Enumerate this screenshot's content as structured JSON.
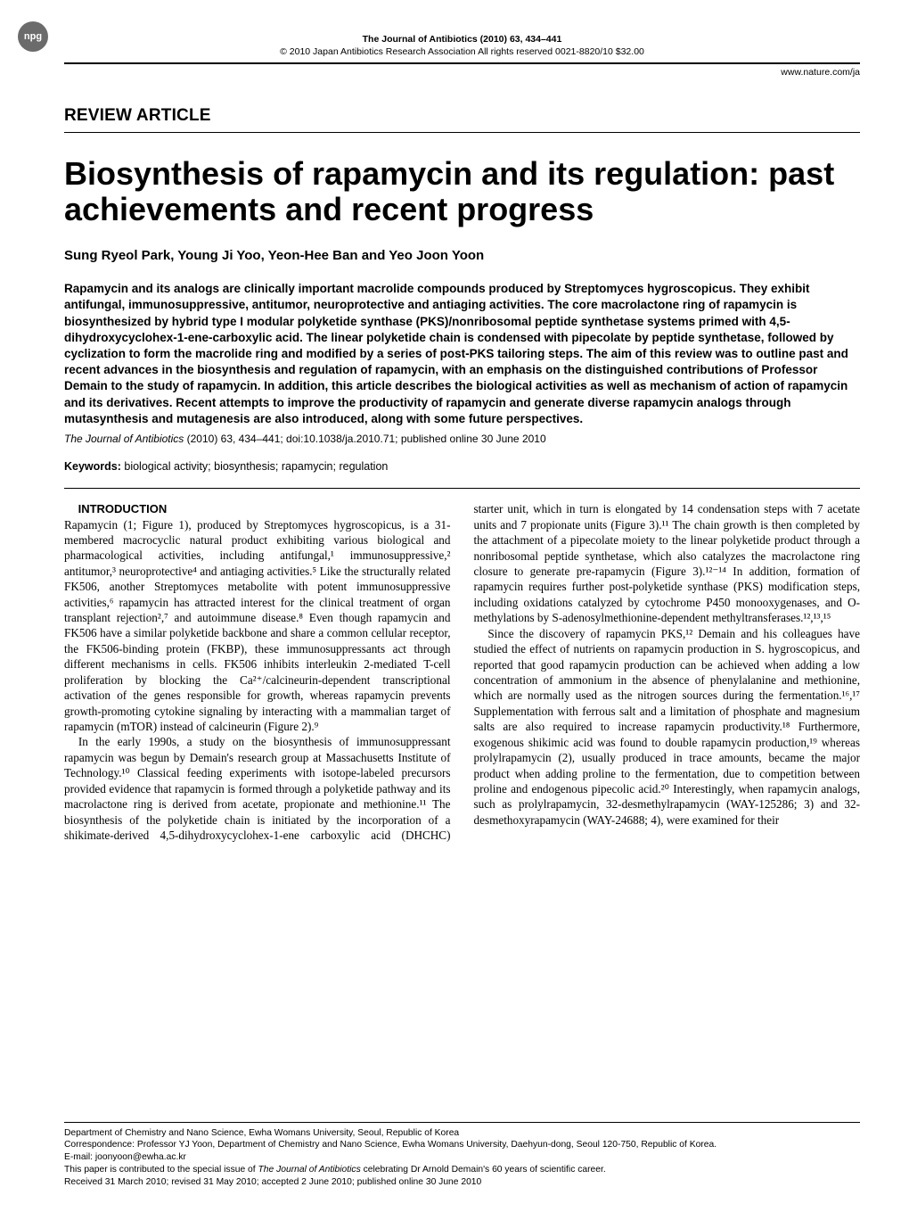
{
  "masthead": {
    "npg_badge": "npg",
    "journal_line": "The Journal of Antibiotics (2010) 63, 434–441",
    "copyright_line": "© 2010 Japan Antibiotics Research Association   All rights reserved 0021-8820/10 $32.00",
    "url": "www.nature.com/ja"
  },
  "article": {
    "section_label": "REVIEW ARTICLE",
    "title": "Biosynthesis of rapamycin and its regulation: past achievements and recent progress",
    "authors": "Sung Ryeol Park, Young Ji Yoo, Yeon-Hee Ban and Yeo Joon Yoon",
    "abstract": "Rapamycin and its analogs are clinically important macrolide compounds produced by Streptomyces hygroscopicus. They exhibit antifungal, immunosuppressive, antitumor, neuroprotective and antiaging activities. The core macrolactone ring of rapamycin is biosynthesized by hybrid type I modular polyketide synthase (PKS)/nonribosomal peptide synthetase systems primed with 4,5-dihydroxycyclohex-1-ene-carboxylic acid. The linear polyketide chain is condensed with pipecolate by peptide synthetase, followed by cyclization to form the macrolide ring and modified by a series of post-PKS tailoring steps. The aim of this review was to outline past and recent advances in the biosynthesis and regulation of rapamycin, with an emphasis on the distinguished contributions of Professor Demain to the study of rapamycin. In addition, this article describes the biological activities as well as mechanism of action of rapamycin and its derivatives. Recent attempts to improve the productivity of rapamycin and generate diverse rapamycin analogs through mutasynthesis and mutagenesis are also introduced, along with some future perspectives.",
    "citation_journal": "The Journal of Antibiotics",
    "citation_rest": " (2010) 63, 434–441; doi:10.1038/ja.2010.71; published online 30 June 2010",
    "keywords_label": "Keywords:",
    "keywords": " biological activity; biosynthesis; rapamycin; regulation"
  },
  "body": {
    "introduction_heading": "INTRODUCTION",
    "p1": "Rapamycin (1; Figure 1), produced by Streptomyces hygroscopicus, is a 31-membered macrocyclic natural product exhibiting various biological and pharmacological activities, including antifungal,¹ immunosuppressive,² antitumor,³ neuroprotective⁴ and antiaging activities.⁵ Like the structurally related FK506, another Streptomyces metabolite with potent immunosuppressive activities,⁶ rapamycin has attracted interest for the clinical treatment of organ transplant rejection²,⁷ and autoimmune disease.⁸ Even though rapamycin and FK506 have a similar polyketide backbone and share a common cellular receptor, the FK506-binding protein (FKBP), these immunosuppressants act through different mechanisms in cells. FK506 inhibits interleukin 2-mediated T-cell proliferation by blocking the Ca²⁺/calcineurin-dependent transcriptional activation of the genes responsible for growth, whereas rapamycin prevents growth-promoting cytokine signaling by interacting with a mammalian target of rapamycin (mTOR) instead of calcineurin (Figure 2).⁹",
    "p2": "In the early 1990s, a study on the biosynthesis of immunosuppressant rapamycin was begun by Demain's research group at Massachusetts Institute of Technology.¹⁰ Classical feeding experiments with isotope-labeled precursors provided evidence that rapamycin is formed through a polyketide pathway and its macrolactone ring is derived from acetate, propionate and methionine.¹¹ The biosynthesis of the polyketide chain is initiated by the incorporation of a shikimate-derived 4,5-dihydroxycyclohex-1-ene carboxylic acid (DHCHC) starter unit, which in turn is elongated by 14 condensation steps with 7 acetate units and 7 propionate units (Figure 3).¹¹ The chain growth is then completed by the attachment of a pipecolate moiety to the linear polyketide product through a nonribosomal peptide synthetase, which also catalyzes the macrolactone ring closure to generate pre-rapamycin (Figure 3).¹²⁻¹⁴ In addition, formation of rapamycin requires further post-polyketide synthase (PKS) modification steps, including oxidations catalyzed by cytochrome P450 monooxygenases, and O-methylations by S-adenosylmethionine-dependent methyltransferases.¹²,¹³,¹⁵",
    "p3": "Since the discovery of rapamycin PKS,¹² Demain and his colleagues have studied the effect of nutrients on rapamycin production in S. hygroscopicus, and reported that good rapamycin production can be achieved when adding a low concentration of ammonium in the absence of phenylalanine and methionine, which are normally used as the nitrogen sources during the fermentation.¹⁶,¹⁷ Supplementation with ferrous salt and a limitation of phosphate and magnesium salts are also required to increase rapamycin productivity.¹⁸ Furthermore, exogenous shikimic acid was found to double rapamycin production,¹⁹ whereas prolylrapamycin (2), usually produced in trace amounts, became the major product when adding proline to the fermentation, due to competition between proline and endogenous pipecolic acid.²⁰ Interestingly, when rapamycin analogs, such as prolylrapamycin, 32-desmethylrapamycin (WAY-125286; 3) and 32-desmethoxyrapamycin (WAY-24688; 4), were examined for their"
  },
  "footer": {
    "affil": "Department of Chemistry and Nano Science, Ewha Womans University, Seoul, Republic of Korea",
    "corr": "Correspondence: Professor YJ Yoon, Department of Chemistry and Nano Science, Ewha Womans University, Daehyun-dong, Seoul 120-750, Republic of Korea.",
    "email": "E-mail: joonyoon@ewha.ac.kr",
    "note_pre": "This paper is contributed to the special issue of ",
    "note_it": "The Journal of Antibiotics",
    "note_post": " celebrating Dr Arnold Demain's 60 years of scientific career.",
    "dates": "Received 31 March 2010; revised 31 May 2010; accepted 2 June 2010; published online 30 June 2010"
  }
}
